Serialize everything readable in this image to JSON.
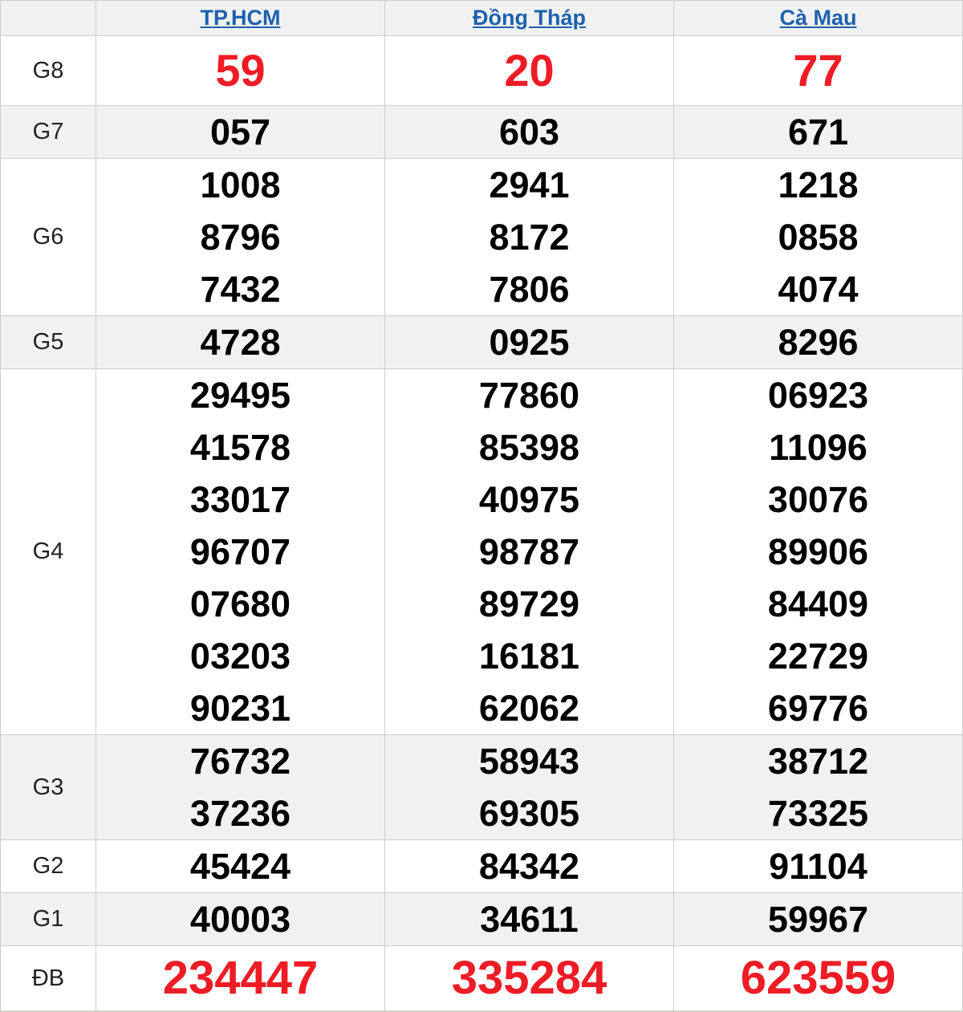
{
  "colors": {
    "red_highlight": "#ee1c25",
    "link_blue": "#1b61ae",
    "band_gray": "#f1f1f1",
    "border_gray": "#cccccc",
    "number_black": "#000000"
  },
  "table": {
    "columns": [
      {
        "label": "TP.HCM"
      },
      {
        "label": "Đồng Tháp"
      },
      {
        "label": "Cà Mau"
      }
    ],
    "rows": [
      {
        "label": "G8",
        "style": "red-lg",
        "shaded": false,
        "values": [
          [
            "59"
          ],
          [
            "20"
          ],
          [
            "77"
          ]
        ]
      },
      {
        "label": "G7",
        "style": "normal",
        "shaded": true,
        "values": [
          [
            "057"
          ],
          [
            "603"
          ],
          [
            "671"
          ]
        ]
      },
      {
        "label": "G6",
        "style": "normal",
        "shaded": false,
        "values": [
          [
            "1008",
            "8796",
            "7432"
          ],
          [
            "2941",
            "8172",
            "7806"
          ],
          [
            "1218",
            "0858",
            "4074"
          ]
        ]
      },
      {
        "label": "G5",
        "style": "normal",
        "shaded": true,
        "values": [
          [
            "4728"
          ],
          [
            "0925"
          ],
          [
            "8296"
          ]
        ]
      },
      {
        "label": "G4",
        "style": "normal",
        "shaded": false,
        "values": [
          [
            "29495",
            "41578",
            "33017",
            "96707",
            "07680",
            "03203",
            "90231"
          ],
          [
            "77860",
            "85398",
            "40975",
            "98787",
            "89729",
            "16181",
            "62062"
          ],
          [
            "06923",
            "11096",
            "30076",
            "89906",
            "84409",
            "22729",
            "69776"
          ]
        ]
      },
      {
        "label": "G3",
        "style": "normal",
        "shaded": true,
        "values": [
          [
            "76732",
            "37236"
          ],
          [
            "58943",
            "69305"
          ],
          [
            "38712",
            "73325"
          ]
        ]
      },
      {
        "label": "G2",
        "style": "normal",
        "shaded": false,
        "values": [
          [
            "45424"
          ],
          [
            "84342"
          ],
          [
            "91104"
          ]
        ]
      },
      {
        "label": "G1",
        "style": "normal",
        "shaded": true,
        "values": [
          [
            "40003"
          ],
          [
            "34611"
          ],
          [
            "59967"
          ]
        ]
      },
      {
        "label": "ĐB",
        "style": "red-xl",
        "shaded": false,
        "values": [
          [
            "234447"
          ],
          [
            "335284"
          ],
          [
            "623559"
          ]
        ]
      }
    ]
  }
}
